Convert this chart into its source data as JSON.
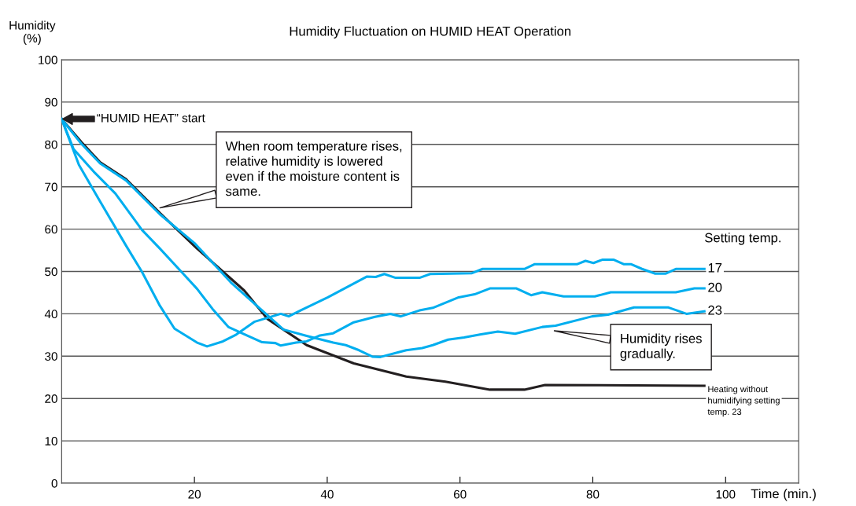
{
  "chart_data": {
    "type": "line",
    "title": "Humidity Fluctuation on HUMID HEAT Operation",
    "xlabel": "Time (min.)",
    "ylabel": "Humidity\n(%)",
    "xlim": [
      0,
      111
    ],
    "xticks": [
      20,
      40,
      60,
      80,
      100
    ],
    "ylim": [
      0,
      100
    ],
    "yticks": [
      0,
      10,
      20,
      30,
      40,
      50,
      60,
      70,
      80,
      90,
      100
    ],
    "grid": "y",
    "marker": "none",
    "line_style": "solid",
    "series": [
      {
        "name": "17",
        "color": "#00aeef",
        "x": [
          0,
          2.6,
          5.8,
          9.7,
          12.1,
          14.8,
          17,
          20.4,
          21.9,
          24.3,
          26.3,
          29,
          33,
          34.2,
          36.1,
          40.1,
          46,
          47.3,
          48.6,
          50.3,
          53.9,
          55.5,
          61.8,
          63.4,
          69.7,
          71.2,
          77.6,
          78.9,
          80.1,
          81.5,
          83.1,
          84.7,
          85.8,
          87.4,
          89.4,
          91,
          92.5,
          96.8
        ],
        "values": [
          86,
          75.2,
          66.5,
          56.1,
          49.9,
          41.9,
          36.5,
          33.2,
          32.3,
          33.5,
          35.1,
          38.1,
          40,
          39.4,
          40.9,
          43.9,
          48.8,
          48.7,
          49.4,
          48.5,
          48.5,
          49.4,
          49.6,
          50.6,
          50.6,
          51.7,
          51.7,
          52.5,
          52,
          52.8,
          52.8,
          51.7,
          51.7,
          50.6,
          49.5,
          49.5,
          50.6,
          50.6
        ]
      },
      {
        "name": "20",
        "color": "#00aeef",
        "x": [
          0,
          1.8,
          5,
          8.1,
          12.1,
          14.8,
          18.4,
          20.4,
          22.7,
          25.1,
          27.5,
          30.2,
          32.2,
          33,
          35.3,
          36.9,
          38.9,
          40.9,
          44,
          47.2,
          49.5,
          51.1,
          53.9,
          55.9,
          59.8,
          62.2,
          64.5,
          68.5,
          70.7,
          72.4,
          75.6,
          80.3,
          82.7,
          92.5,
          95.3,
          96.8
        ],
        "values": [
          86,
          78.9,
          73.3,
          68.4,
          59.8,
          55.4,
          49.3,
          45.9,
          41.2,
          36.9,
          35.2,
          33.3,
          33.1,
          32.5,
          33.2,
          33.5,
          34.9,
          35.4,
          38,
          39.3,
          40,
          39.4,
          40.8,
          41.4,
          43.9,
          44.6,
          46,
          46,
          44.4,
          45.1,
          44.1,
          44.1,
          45.1,
          45.1,
          46,
          46
        ]
      },
      {
        "name": "23",
        "color": "#00aeef",
        "x": [
          0,
          3,
          5.8,
          9.7,
          14.8,
          20,
          25.5,
          29.4,
          33.4,
          36.9,
          40.9,
          42.8,
          44.8,
          46.8,
          48,
          51.9,
          54.3,
          55.9,
          58.2,
          60.6,
          63,
          65.7,
          68.3,
          72.4,
          74.4,
          79.9,
          82.3,
          86.2,
          91.4,
          94.1,
          96.8
        ],
        "values": [
          86,
          80.1,
          75.5,
          71.5,
          63.5,
          56.7,
          47.4,
          41.9,
          36.3,
          34.8,
          33.2,
          32.6,
          31.4,
          29.9,
          29.8,
          31.4,
          31.9,
          32.6,
          33.9,
          34.4,
          35.1,
          35.8,
          35.3,
          36.9,
          37.2,
          39.4,
          39.8,
          41.5,
          41.5,
          40,
          40.6
        ]
      },
      {
        "name": "Heating without\nhumidifying setting\ntemp. 23",
        "color": "#231f20",
        "x": [
          0,
          3,
          5.8,
          9.7,
          14.8,
          20.4,
          27.5,
          31,
          36.9,
          44,
          51.9,
          57.8,
          64.5,
          69.7,
          72.8,
          96.8
        ],
        "values": [
          86,
          80.5,
          75.8,
          71.8,
          63.8,
          55.4,
          45.5,
          38.8,
          32.6,
          28.3,
          25.2,
          24,
          22.1,
          22.1,
          23.2,
          23
        ]
      }
    ],
    "annotations": [
      {
        "text": "“HUMID HEAT” start",
        "x": 0,
        "y": 86
      },
      {
        "text": "When room temperature rises,\nrelative humidity is lowered\neven if the moisture content is\nsame.",
        "x": 14.8,
        "y": 65
      },
      {
        "text": "Humidity rises\ngradually.",
        "x": 74.2,
        "y": 36
      },
      "Setting temp."
    ]
  }
}
